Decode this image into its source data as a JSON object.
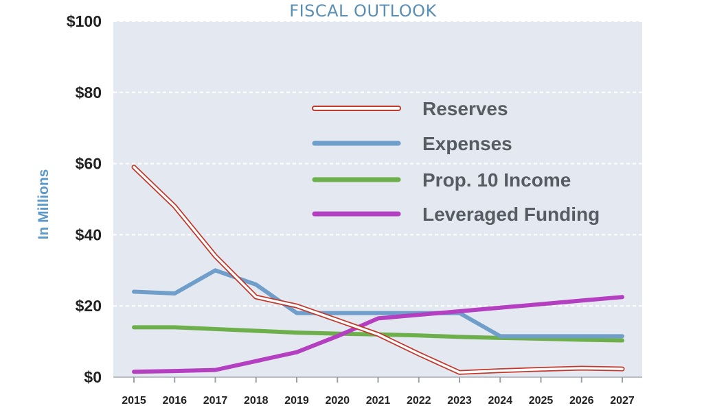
{
  "title": "FISCAL OUTLOOK",
  "chart_data": {
    "type": "line",
    "title": "FISCAL OUTLOOK",
    "xlabel": "",
    "ylabel": "In Millions",
    "ylim": [
      0,
      100
    ],
    "yticks": [
      "$0",
      "$20",
      "$40",
      "$60",
      "$80",
      "$100"
    ],
    "categories": [
      "2015",
      "2016",
      "2017",
      "2018",
      "2019",
      "2020",
      "2021",
      "2022",
      "2023",
      "2024",
      "2025",
      "2026",
      "2027"
    ],
    "grid": "horizontal dashed",
    "legend_position": "top-right",
    "colors": {
      "plot_background": "#e4e8f1",
      "grid": "#ffffff",
      "reserves_outline": "#c0392b",
      "expenses": "#6e9ec9",
      "income": "#6db04b",
      "leveraged": "#b43fc0"
    },
    "series": [
      {
        "name": "Reserves",
        "style": "outline",
        "color": "#c0392b",
        "values": [
          59,
          48,
          34,
          22.5,
          20,
          16,
          12,
          6.5,
          1.3,
          1.8,
          2.2,
          2.5,
          2.3
        ]
      },
      {
        "name": "Expenses",
        "style": "solid",
        "color": "#6e9ec9",
        "values": [
          24,
          23.5,
          30,
          26,
          18,
          18,
          18,
          18,
          18,
          11.5,
          11.5,
          11.5,
          11.5
        ]
      },
      {
        "name": "Prop. 10 Income",
        "style": "solid",
        "color": "#6db04b",
        "values": [
          14,
          14,
          13.5,
          13,
          12.5,
          12.2,
          12,
          11.7,
          11.3,
          11,
          10.8,
          10.5,
          10.3
        ]
      },
      {
        "name": "Leveraged Funding",
        "style": "solid",
        "color": "#b43fc0",
        "values": [
          1.5,
          1.7,
          2,
          4.5,
          7,
          11.5,
          16.5,
          17.5,
          18.5,
          19.5,
          20.5,
          21.5,
          22.5
        ]
      }
    ]
  }
}
